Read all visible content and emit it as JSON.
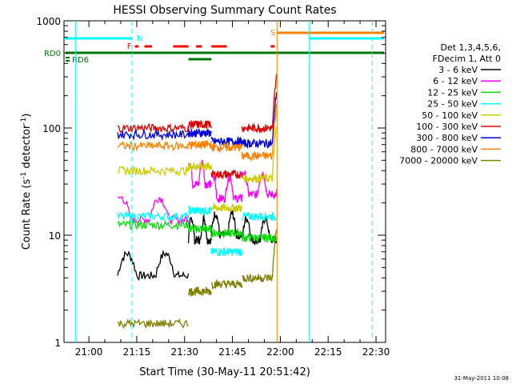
{
  "chart_data": {
    "type": "line",
    "title": "HESSI Observing Summary Count Rates",
    "xlabel": "Start Time (30-May-11 20:51:42)",
    "ylabel_main": "Count Rate (s",
    "ylabel_sup1": "-1",
    "ylabel_mid": " detector",
    "ylabel_sup2": "-1",
    "ylabel_end": ")",
    "y_scale": "log",
    "ylim": [
      1,
      1000
    ],
    "xlim_minutes": [
      20.87,
      22.55
    ],
    "x_ticks": [
      "21:00",
      "21:15",
      "21:30",
      "21:45",
      "22:00",
      "22:15",
      "22:30"
    ],
    "x_tick_hours": [
      21.0,
      21.25,
      21.5,
      21.75,
      22.0,
      22.25,
      22.5
    ],
    "y_ticks": [
      "1",
      "10",
      "100",
      "1000"
    ],
    "y_tick_values": [
      1,
      10,
      100,
      1000
    ],
    "legend_header": [
      "Det 1,3,4,5,6,",
      "FDecim 1, Att 0"
    ],
    "series": [
      {
        "name": "3 - 6 keV",
        "color": "#000000",
        "level_a": 4.2,
        "level_b": 9.0,
        "level_c": 10.0,
        "level_d": 9.0
      },
      {
        "name": "6 - 12 keV",
        "color": "#ff00ff",
        "level_a": 14.0,
        "level_b": 30.0,
        "level_c": 22.0,
        "level_d": 24.0
      },
      {
        "name": "12 - 25 keV",
        "color": "#00dd00",
        "level_a": 12.5,
        "level_b": 11.5,
        "level_c": 10.5,
        "level_d": 9.5
      },
      {
        "name": "25 - 50 keV",
        "color": "#00ffff",
        "level_a": 15.0,
        "level_b": 17.0,
        "level_c": 7.0,
        "level_d": 15.0
      },
      {
        "name": "50 - 100 keV",
        "color": "#cccc00",
        "level_a": 40.0,
        "level_b": 44.0,
        "level_c": 18.0,
        "level_d": 34.0
      },
      {
        "name": "100 - 300 keV",
        "color": "#dd0000",
        "level_a": 100.0,
        "level_b": 108.0,
        "level_c": 37.0,
        "level_d": 100.0
      },
      {
        "name": "300 - 800 keV",
        "color": "#0000dd",
        "level_a": 87.0,
        "level_b": 90.0,
        "level_c": 75.0,
        "level_d": 72.0
      },
      {
        "name": "800 - 7000 keV",
        "color": "#ff8000",
        "level_a": 68.0,
        "level_b": 70.0,
        "level_c": 66.0,
        "level_d": 55.0
      },
      {
        "name": "7000 - 20000 keV",
        "color": "#808000",
        "level_a": 1.5,
        "level_b": 3.0,
        "level_c": 3.5,
        "level_d": 4.0
      }
    ],
    "flag_labels": {
      "N": "N",
      "F": "F",
      "S": "S",
      "RD0": "RD0",
      "RD6": "RD6"
    },
    "flag_colors": {
      "saa": "#00ffff",
      "flare": "#ff0000",
      "night": "#ff8000",
      "rd0": "#007700",
      "rd6": "#007700"
    },
    "vertical_markers": {
      "n_dashed": 21.225,
      "s_line": 21.983,
      "cyan_solid_1": 20.93,
      "cyan_solid_2": 22.15,
      "cyan_dashed_end": 22.48
    }
  },
  "footer": {
    "date_stamp": "31-May-2011 10:08"
  }
}
